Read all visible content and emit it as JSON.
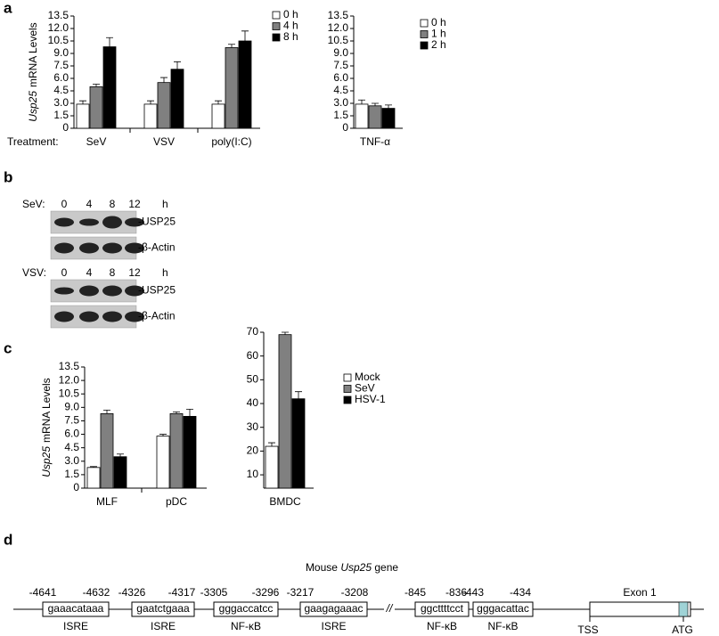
{
  "panel_labels": [
    "a",
    "b",
    "c",
    "d"
  ],
  "chart_data": [
    {
      "type": "bar",
      "y_label": {
        "gene": "Usp25",
        "text": "mRNA Levels"
      },
      "row_label": "Treatment:",
      "categories": [
        "SeV",
        "VSV",
        "poly(I:C)"
      ],
      "series": [
        {
          "name": "0 h",
          "color": "#ffffff",
          "values": [
            2.9,
            2.9,
            2.9
          ],
          "errors": [
            0.4,
            0.4,
            0.4
          ]
        },
        {
          "name": "4 h",
          "color": "#808080",
          "values": [
            5.0,
            5.5,
            9.7
          ],
          "errors": [
            0.3,
            0.6,
            0.4
          ]
        },
        {
          "name": "8 h",
          "color": "#000000",
          "values": [
            9.8,
            7.1,
            10.5
          ],
          "errors": [
            1.1,
            0.9,
            1.2
          ]
        }
      ],
      "ylim": [
        0,
        13.5
      ],
      "yticks": [
        0,
        1.5,
        {
          "value": 3,
          "label": "3.0"
        },
        4.5,
        {
          "value": 6,
          "label": "6.0"
        },
        7.5,
        {
          "value": 9,
          "label": "9.0"
        },
        10.5,
        {
          "value": 12,
          "label": "12.0"
        },
        13.5
      ]
    },
    {
      "type": "bar",
      "categories": [
        "TNF-α"
      ],
      "series": [
        {
          "name": "0 h",
          "color": "#ffffff",
          "values": [
            2.9
          ],
          "errors": [
            0.5
          ]
        },
        {
          "name": "1 h",
          "color": "#808080",
          "values": [
            2.7
          ],
          "errors": [
            0.3
          ]
        },
        {
          "name": "2 h",
          "color": "#000000",
          "values": [
            2.4
          ],
          "errors": [
            0.4
          ]
        }
      ],
      "ylim": [
        0,
        13.5
      ],
      "yticks": [
        0,
        1.5,
        {
          "value": 3,
          "label": "3.0"
        },
        4.5,
        {
          "value": 6,
          "label": "6.0"
        },
        7.5,
        {
          "value": 9,
          "label": "9.0"
        },
        10.5,
        {
          "value": 12,
          "label": "12.0"
        },
        13.5
      ]
    },
    {
      "type": "bar",
      "y_label": {
        "gene": "Usp25",
        "text": "mRNA Levels"
      },
      "categories": [
        "MLF",
        "pDC"
      ],
      "series": [
        {
          "name": "Mock",
          "color": "#ffffff",
          "values": [
            2.3,
            5.8
          ],
          "errors": [
            0.1,
            0.2
          ]
        },
        {
          "name": "SeV",
          "color": "#808080",
          "values": [
            8.3,
            8.3
          ],
          "errors": [
            0.4,
            0.2
          ]
        },
        {
          "name": "HSV-1",
          "color": "#000000",
          "values": [
            3.5,
            8.0
          ],
          "errors": [
            0.3,
            0.8
          ]
        }
      ],
      "ylim": [
        0,
        13.5
      ],
      "yticks": [
        0,
        1.5,
        {
          "value": 3,
          "label": "3.0"
        },
        4.5,
        {
          "value": 6,
          "label": "6.0"
        },
        7.5,
        {
          "value": 9,
          "label": "9.0"
        },
        10.5,
        {
          "value": 12,
          "label": "12.0"
        },
        13.5
      ]
    },
    {
      "type": "bar",
      "categories": [
        "BMDC"
      ],
      "series": [
        {
          "color": "#ffffff",
          "values": [
            22
          ],
          "errors": [
            1.5
          ]
        },
        {
          "color": "#808080",
          "values": [
            69
          ],
          "errors": [
            1
          ]
        },
        {
          "color": "#000000",
          "values": [
            42
          ],
          "errors": [
            3
          ]
        }
      ],
      "ylim": [
        4.4,
        70
      ],
      "yticks": [
        10,
        20,
        30,
        40,
        50,
        60,
        70
      ]
    }
  ],
  "blot": {
    "rows": [
      {
        "treatment": "SeV:",
        "lanes": [
          "0",
          "4",
          "8",
          "12"
        ],
        "unit": "h",
        "bands": [
          "-USP25",
          "-β-Actin"
        ]
      },
      {
        "treatment": "VSV:",
        "lanes": [
          "0",
          "4",
          "8",
          "12"
        ],
        "unit": "h",
        "bands": [
          "-USP25",
          "-β-Actin"
        ]
      }
    ]
  },
  "gene": {
    "title": {
      "prefix": "Mouse",
      "gene": "Usp25",
      "suffix": "gene"
    },
    "sites": [
      {
        "start": "-4641",
        "end": "-4632",
        "seq": "gaaacataaa",
        "label": "ISRE"
      },
      {
        "start": "-4326",
        "end": "-4317",
        "seq": "gaatctgaaa",
        "label": "ISRE"
      },
      {
        "start": "-3305",
        "end": "-3296",
        "seq": "gggaccatcc",
        "label": "NF-κB"
      },
      {
        "start": "-3217",
        "end": "-3208",
        "seq": "gaagagaaac",
        "label": "ISRE"
      },
      {
        "start": "-845",
        "end": "-836",
        "seq": "ggcttttcct",
        "label": "NF-κB"
      },
      {
        "start": "-443",
        "end": "-434",
        "seq": "gggacattac",
        "label": "NF-κB"
      }
    ],
    "break": "//",
    "exon": "Exon 1",
    "tss": "TSS",
    "atg": "ATG"
  }
}
